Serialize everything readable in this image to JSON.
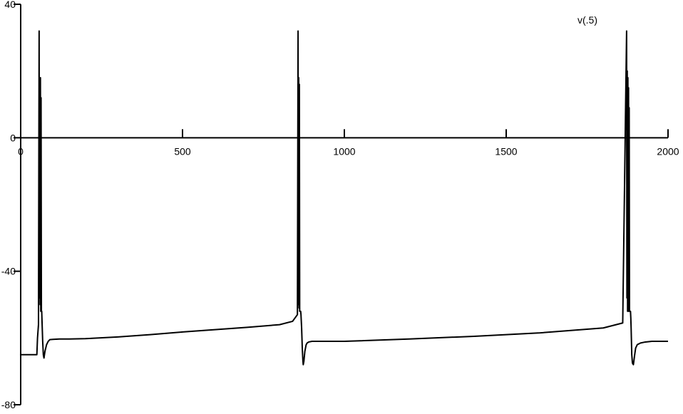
{
  "chart_data": {
    "type": "line",
    "title": "",
    "xlabel": "",
    "ylabel": "",
    "xlim": [
      0,
      2000
    ],
    "ylim": [
      -80,
      40
    ],
    "x_ticks": [
      0,
      500,
      1000,
      1500,
      2000
    ],
    "x_tick_labels": [
      "0",
      "500",
      "1000",
      "1500",
      "2000"
    ],
    "y_ticks": [
      -80,
      -40,
      0,
      40
    ],
    "y_tick_labels": [
      "-80",
      "-40",
      "0",
      "40"
    ],
    "grid": false,
    "legend_position": "top-right",
    "series": [
      {
        "name": "v(.5)",
        "color": "#000000",
        "x": [
          0,
          50,
          52,
          55,
          57,
          58,
          59,
          60,
          61,
          62,
          63,
          64,
          65,
          66,
          67,
          68,
          69,
          70,
          72,
          75,
          80,
          85,
          90,
          100,
          120,
          150,
          200,
          300,
          400,
          500,
          600,
          700,
          800,
          840,
          855,
          857,
          858,
          859,
          860,
          861,
          862,
          863,
          864,
          865,
          866,
          867,
          868,
          869,
          870,
          871,
          872,
          873,
          875,
          878,
          882,
          885,
          890,
          900,
          920,
          950,
          1000,
          1200,
          1400,
          1600,
          1800,
          1860,
          1872,
          1873,
          1874,
          1875,
          1876,
          1877,
          1878,
          1879,
          1880,
          1881,
          1882,
          1883,
          1884,
          1885,
          1886,
          1887,
          1888,
          1890,
          1893,
          1897,
          1900,
          1905,
          1915,
          1930,
          1950,
          1970,
          2000
        ],
        "y": [
          -65,
          -65,
          -60,
          -56,
          32,
          -48,
          17,
          -50,
          18,
          -52,
          12,
          -52,
          -52,
          -55,
          -58,
          -61,
          -63,
          -65,
          -66,
          -64,
          -62,
          -61,
          -60.5,
          -60.4,
          -60.3,
          -60.3,
          -60.2,
          -59.7,
          -59,
          -58.2,
          -57.5,
          -56.8,
          -56,
          -55,
          -53,
          32,
          -50,
          18,
          -51,
          16,
          -52,
          -52,
          -52,
          -52,
          -53,
          -55,
          -57,
          -60,
          -63,
          -65,
          -67,
          -68,
          -67,
          -64,
          -62,
          -61.5,
          -61.2,
          -61,
          -61,
          -61,
          -61,
          -60.3,
          -59.5,
          -58.5,
          -57,
          -55.5,
          32,
          -48,
          20,
          -52,
          18,
          -52,
          15,
          -52,
          9,
          -52,
          -52,
          -52,
          -52,
          -54,
          -57,
          -61,
          -65,
          -67.5,
          -68,
          -65,
          -63,
          -62,
          -61.5,
          -61.2,
          -61,
          -61,
          -61
        ]
      }
    ]
  }
}
